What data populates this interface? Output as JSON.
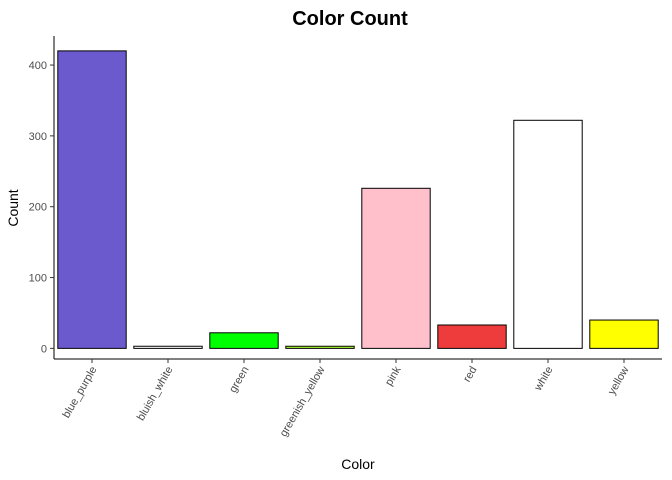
{
  "chart_data": {
    "type": "bar",
    "title": "Color Count",
    "xlabel": "Color",
    "ylabel": "Count",
    "categories": [
      "blue_purple",
      "bluish_white",
      "green",
      "greenish_yellow",
      "pink",
      "red",
      "white",
      "yellow"
    ],
    "values": [
      420,
      3,
      22,
      3,
      226,
      33,
      322,
      40
    ],
    "colors": [
      "#6a5acd",
      "#ffffff",
      "#00ff00",
      "#adff2f",
      "#ffc0cb",
      "#ee3b3b",
      "#ffffff",
      "#ffff00"
    ],
    "yticks": [
      0,
      100,
      200,
      300,
      400
    ],
    "ylim": [
      -15,
      441
    ],
    "grid": false,
    "legend": "none",
    "bar_outline": "#000000"
  }
}
